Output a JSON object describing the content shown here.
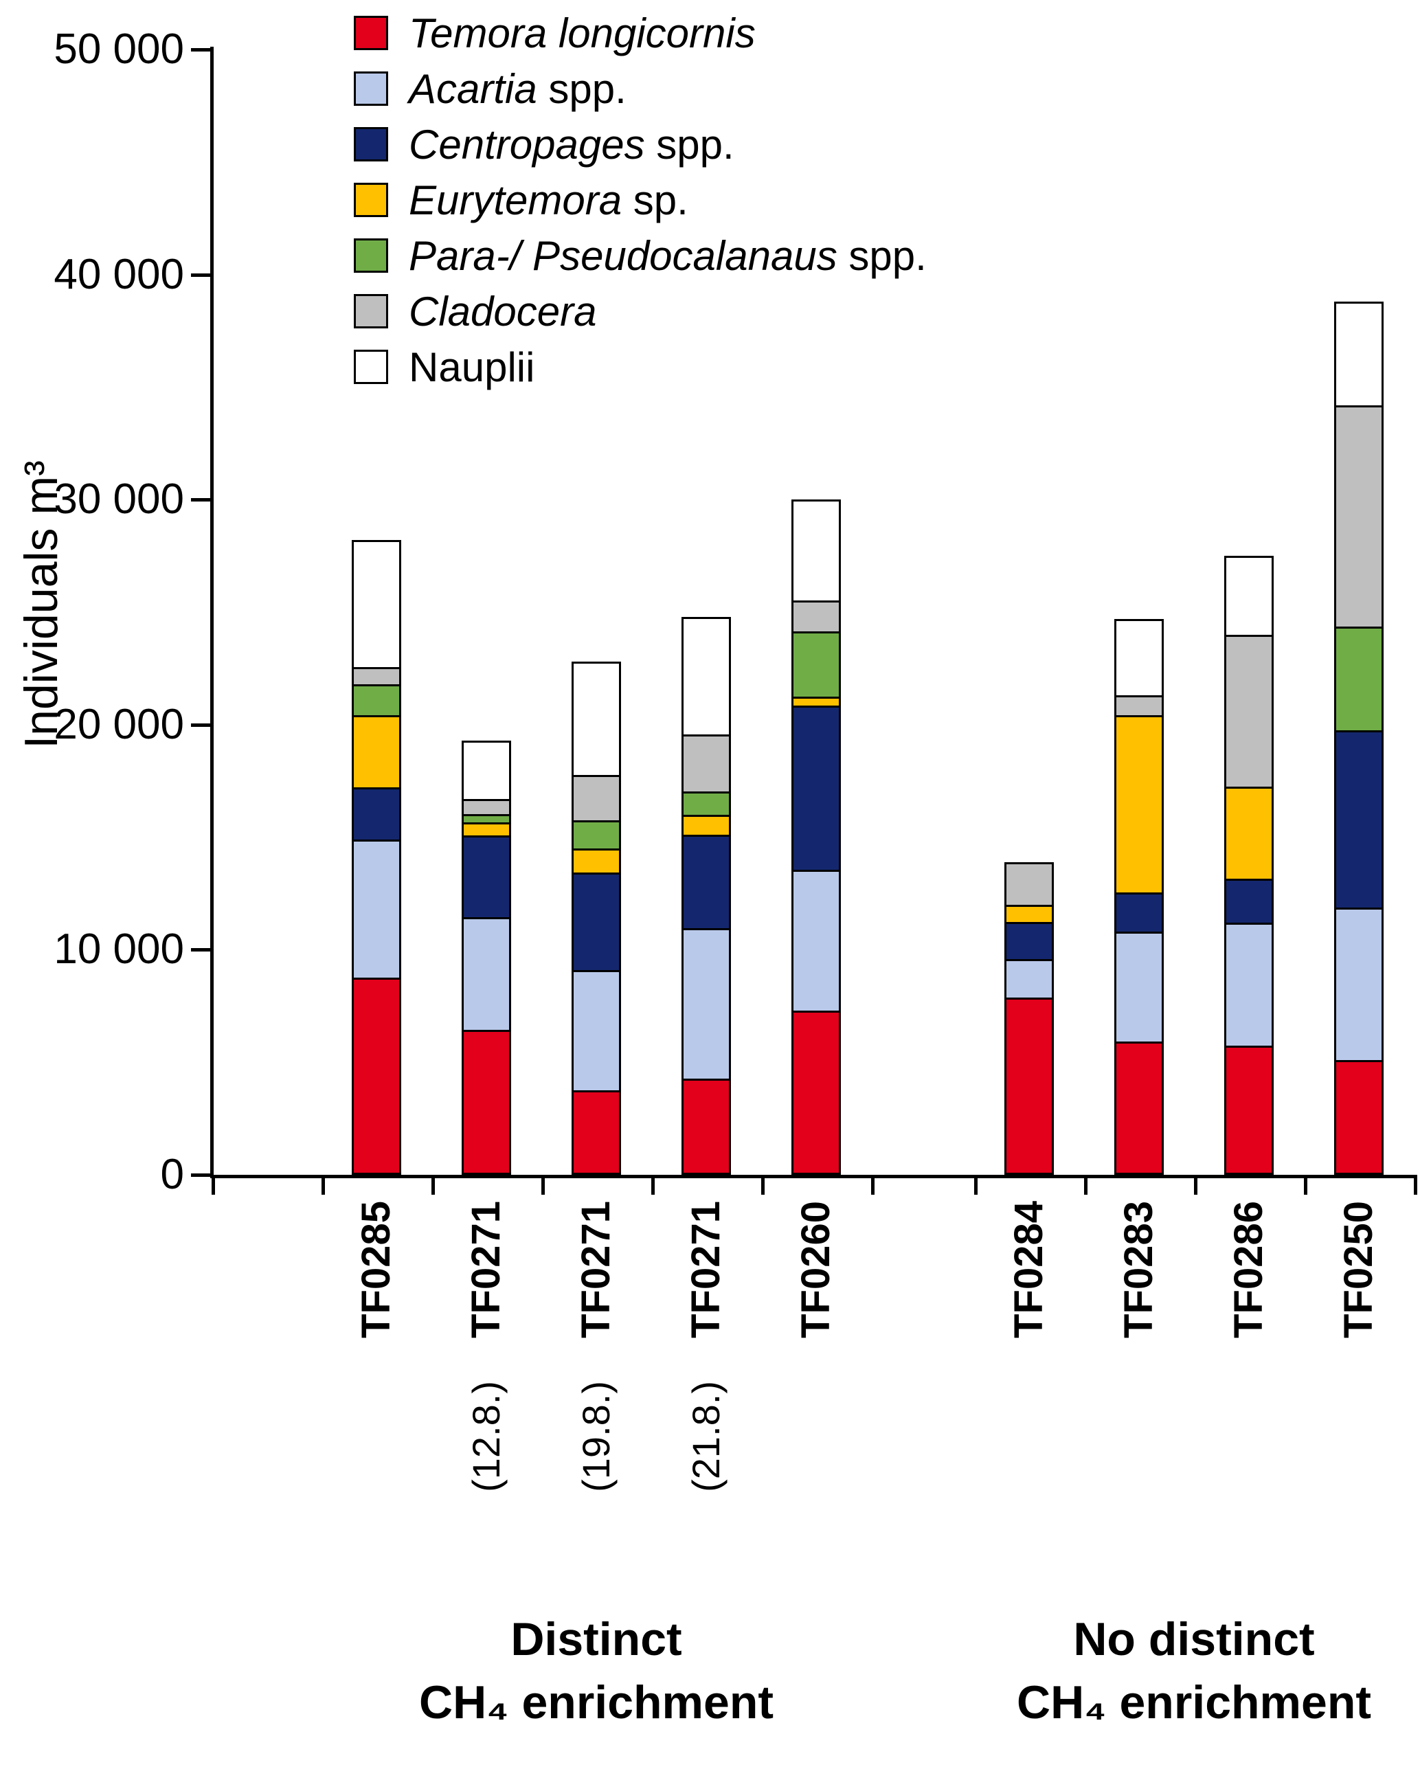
{
  "y_axis": {
    "title": "Individuals m³",
    "tick_labels": [
      "0",
      "10 000",
      "20 000",
      "30 000",
      "40 000",
      "50 000"
    ]
  },
  "groups": {
    "left": {
      "line1": "Distinct",
      "line2": "CH₄ enrichment"
    },
    "right": {
      "line1": "No distinct",
      "line2": "CH₄ enrichment"
    }
  },
  "legend": [
    {
      "italic": "Temora longicornis",
      "roman": "",
      "color": "#e2001a"
    },
    {
      "italic": "Acartia",
      "roman": " spp.",
      "color": "#b9c9ea"
    },
    {
      "italic": "Centropages",
      "roman": " spp.",
      "color": "#14276e"
    },
    {
      "italic": "Eurytemora",
      "roman": " sp.",
      "color": "#ffc000"
    },
    {
      "italic": "Para-/ Pseudocalanaus",
      "roman": " spp.",
      "color": "#70ad47"
    },
    {
      "italic": "Cladocera",
      "roman": "",
      "color": "#bfbfbf"
    },
    {
      "italic": "",
      "roman": "Nauplii",
      "color": "#ffffff"
    }
  ],
  "chart_data": {
    "type": "bar",
    "stacked": true,
    "title": "",
    "ylabel": "Individuals m³",
    "xlabel": "",
    "ylim": [
      0,
      50000
    ],
    "ytick_values": [
      0,
      10000,
      20000,
      30000,
      40000,
      50000
    ],
    "ytick_labels": [
      "0",
      "10 000",
      "20 000",
      "30 000",
      "40 000",
      "50 000"
    ],
    "categories": [
      "TF0285",
      "TF0271",
      "TF0271",
      "TF0271",
      "TF0260",
      "TF0284",
      "TF0283",
      "TF0286",
      "TF0250"
    ],
    "category_sublabels": [
      "",
      "(12.8.)",
      "(19.8.)",
      "(21.8.)",
      "",
      "",
      "",
      "",
      ""
    ],
    "group_of_category": [
      "Distinct CH₄ enrichment",
      "Distinct CH₄ enrichment",
      "Distinct CH₄ enrichment",
      "Distinct CH₄ enrichment",
      "Distinct CH₄ enrichment",
      "No distinct CH₄ enrichment",
      "No distinct CH₄ enrichment",
      "No distinct CH₄ enrichment",
      "No distinct CH₄ enrichment"
    ],
    "legend_position": "upper-left",
    "grid": false,
    "series": [
      {
        "name": "Temora longicornis",
        "color": "#e2001a",
        "values": [
          8800,
          6500,
          3700,
          4200,
          7300,
          8000,
          5900,
          5700,
          5000
        ]
      },
      {
        "name": "Acartia spp.",
        "color": "#b9c9ea",
        "values": [
          6200,
          5100,
          5400,
          6800,
          6300,
          1700,
          4900,
          5500,
          6800
        ]
      },
      {
        "name": "Centropages spp.",
        "color": "#14276e",
        "values": [
          2300,
          3700,
          4400,
          4200,
          7400,
          1600,
          1700,
          1900,
          7900
        ]
      },
      {
        "name": "Eurytemora sp.",
        "color": "#ffc000",
        "values": [
          3200,
          500,
          1000,
          800,
          300,
          700,
          8000,
          4100,
          0
        ]
      },
      {
        "name": "Para-/ Pseudocalanaus spp.",
        "color": "#70ad47",
        "values": [
          1300,
          300,
          1200,
          1000,
          2900,
          0,
          0,
          0,
          4600
        ]
      },
      {
        "name": "Cladocera",
        "color": "#bfbfbf",
        "values": [
          700,
          600,
          2000,
          2500,
          1300,
          1900,
          800,
          6800,
          9900
        ]
      },
      {
        "name": "Nauplii",
        "color": "#ffffff",
        "values": [
          5700,
          2600,
          5100,
          5300,
          4500,
          0,
          3400,
          3500,
          4600
        ]
      }
    ],
    "bar_totals": [
      28200,
      19300,
      22800,
      24800,
      30000,
      13900,
      24700,
      27500,
      38800
    ]
  }
}
